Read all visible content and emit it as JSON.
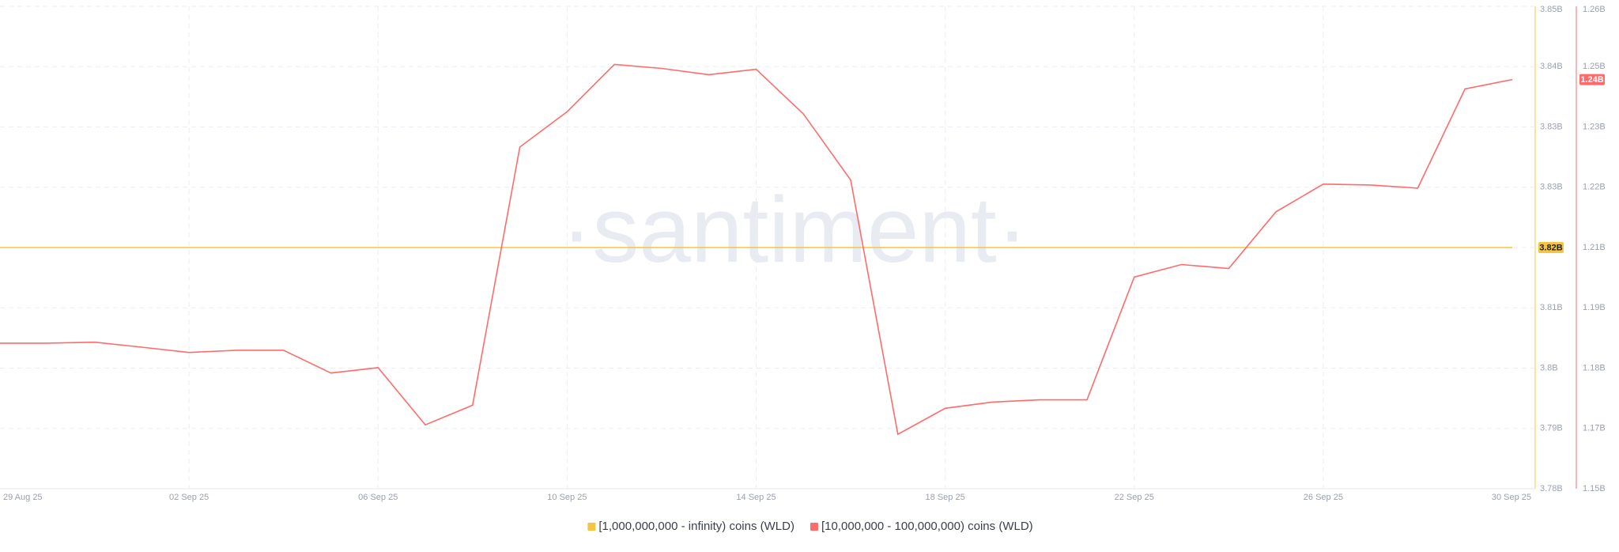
{
  "chart_data": {
    "type": "line",
    "watermark": "·santiment·",
    "categories": [
      "29 Aug 25",
      null,
      null,
      null,
      "02 Sep 25",
      null,
      null,
      null,
      "06 Sep 25",
      null,
      null,
      null,
      "10 Sep 25",
      null,
      null,
      null,
      "14 Sep 25",
      null,
      null,
      null,
      "18 Sep 25",
      null,
      null,
      null,
      "22 Sep 25",
      null,
      null,
      null,
      "26 Sep 25",
      null,
      null,
      null,
      "30 Sep 25"
    ],
    "series": [
      {
        "name": "[1,000,000,000 - infinity) coins (WLD)",
        "color": "#f5c542",
        "axis": "y",
        "values": [
          3.817,
          3.817,
          3.817,
          3.817,
          3.817,
          3.817,
          3.817,
          3.817,
          3.817,
          3.817,
          3.817,
          3.817,
          3.817,
          3.817,
          3.817,
          3.817,
          3.817,
          3.817,
          3.817,
          3.817,
          3.817,
          3.817,
          3.817,
          3.817,
          3.817,
          3.817,
          3.817,
          3.817,
          3.817,
          3.817,
          3.817,
          3.817,
          3.817
        ],
        "last_label": "3.82B"
      },
      {
        "name": "[10,000,000 - 100,000,000) coins (WLD)",
        "color": "#ff6b6b",
        "axis": "y2",
        "values": [
          1.1846,
          1.1846,
          1.1848,
          1.1837,
          1.1825,
          1.183,
          1.183,
          1.1779,
          1.1791,
          1.1663,
          1.1707,
          1.2285,
          1.2364,
          1.247,
          1.2461,
          1.2447,
          1.2459,
          1.2359,
          1.2211,
          1.1642,
          1.17,
          1.1714,
          1.1719,
          1.1719,
          1.1994,
          1.2022,
          1.2013,
          1.214,
          1.2202,
          1.22,
          1.2193,
          1.2415,
          1.2436
        ],
        "last_label": "1.24B"
      }
    ],
    "ylim": [
      3.783,
      3.851
    ],
    "yticks": [
      {
        "value": 3.783,
        "label": "3.78B"
      },
      {
        "value": 3.7915,
        "label": "3.79B"
      },
      {
        "value": 3.8,
        "label": "3.8B"
      },
      {
        "value": 3.8085,
        "label": "3.81B"
      },
      {
        "value": 3.817,
        "label": "3.82B"
      },
      {
        "value": 3.8255,
        "label": "3.83B"
      },
      {
        "value": 3.834,
        "label": "3.83B"
      },
      {
        "value": 3.8425,
        "label": "3.84B"
      },
      {
        "value": 3.851,
        "label": "3.85B"
      }
    ],
    "y2lim": [
      1.152,
      1.26
    ],
    "y2ticks": [
      {
        "value": 1.152,
        "label": "1.15B"
      },
      {
        "value": 1.1655,
        "label": "1.17B"
      },
      {
        "value": 1.179,
        "label": "1.18B"
      },
      {
        "value": 1.1925,
        "label": "1.19B"
      },
      {
        "value": 1.206,
        "label": "1.21B"
      },
      {
        "value": 1.2195,
        "label": "1.22B"
      },
      {
        "value": 1.233,
        "label": "1.23B"
      },
      {
        "value": 1.2465,
        "label": "1.25B"
      },
      {
        "value": 1.26,
        "label": "1.26B"
      }
    ],
    "grid": true
  }
}
